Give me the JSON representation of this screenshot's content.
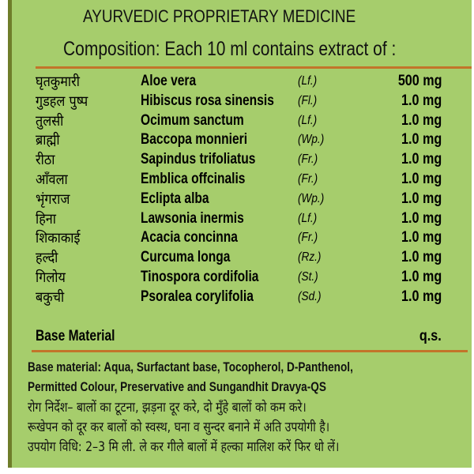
{
  "header": {
    "title": "AYURVEDIC PROPRIETARY MEDICINE",
    "composition": "Composition: Each 10 ml contains extract of :"
  },
  "ingredients": [
    {
      "hindi": "घृतकुमारी",
      "latin": "Aloe vera",
      "part": "(Lf.)",
      "dose": "500 mg"
    },
    {
      "hindi": "गुडहल पुष्प",
      "latin": "Hibiscus rosa sinensis",
      "part": "(Fl.)",
      "dose": "1.0 mg"
    },
    {
      "hindi": "तुलसी",
      "latin": "Ocimum sanctum",
      "part": "(Lf.)",
      "dose": "1.0 mg"
    },
    {
      "hindi": "ब्राह्मी",
      "latin": "Baccopa monnieri",
      "part": "(Wp.)",
      "dose": "1.0 mg"
    },
    {
      "hindi": "रीठा",
      "latin": "Sapindus trifoliatus",
      "part": "(Fr.)",
      "dose": "1.0 mg"
    },
    {
      "hindi": "आँवला",
      "latin": "Emblica offcinalis",
      "part": "(Fr.)",
      "dose": "1.0 mg"
    },
    {
      "hindi": "भृंगराज",
      "latin": "Eclipta alba",
      "part": "(Wp.)",
      "dose": "1.0 mg"
    },
    {
      "hindi": "हिना",
      "latin": "Lawsonia inermis",
      "part": "(Lf.)",
      "dose": "1.0 mg"
    },
    {
      "hindi": "शिकाकाई",
      "latin": "Acacia concinna",
      "part": "(Fr.)",
      "dose": "1.0 mg"
    },
    {
      "hindi": "हल्दी",
      "latin": "Curcuma longa",
      "part": "(Rz.)",
      "dose": "1.0 mg"
    },
    {
      "hindi": "गिलोय",
      "latin": "Tinospora cordifolia",
      "part": "(St.)",
      "dose": "1.0 mg"
    },
    {
      "hindi": "बकुची",
      "latin": "Psoralea corylifolia",
      "part": "(Sd.)",
      "dose": "1.0 mg"
    }
  ],
  "base": {
    "label": "Base Material",
    "dose": "q.s."
  },
  "footer": {
    "line1": "Base material: Aqua, Surfactant base, Tocopherol, D-Panthenol,",
    "line2": "Permitted Colour, Preservative and Sungandhit Dravya-QS",
    "line3": "रोग निर्देश– बालों का टूटना, झड़ना दूर करे, दो मुँहे बालों को कम करे।",
    "line4": "रूखेपन को दूर कर बालों को स्वस्थ, घना व सुन्दर बनाने में अति उपयोगी है।",
    "line5": "उपयोग विधि: 2–3 मि ली. ले कर गीले बालों में हल्का मालिश करें फिर धो लें।"
  },
  "colors": {
    "background": "#a6cd6c",
    "rule": "#c2742a",
    "border": "#6f7d2a"
  }
}
